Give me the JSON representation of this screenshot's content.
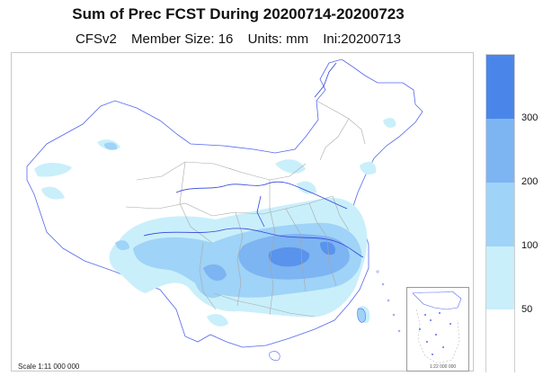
{
  "title": "Sum of Prec FCST During 20200714-20200723",
  "subtitle": {
    "model": "CFSv2",
    "member": "Member Size: 16",
    "units": "Units: mm",
    "init": "Ini:20200713"
  },
  "map": {
    "scale_label": "Scale 1:11 000 000",
    "inset_scale_label": "1:22 000 000",
    "colors": {
      "boundary": "#a8a8a8",
      "river": "#3344dd",
      "coast": "#5566ee"
    }
  },
  "legend": {
    "labels": [
      "300",
      "200",
      "100",
      "50"
    ],
    "classes": [
      {
        "range": "300+",
        "color": "#4a86ea"
      },
      {
        "range": "200-300",
        "color": "#7db4f2"
      },
      {
        "range": "100-200",
        "color": "#9fd3f7"
      },
      {
        "range": "50-100",
        "color": "#c9effb"
      },
      {
        "range": "<50",
        "color": "#ffffff"
      }
    ]
  }
}
